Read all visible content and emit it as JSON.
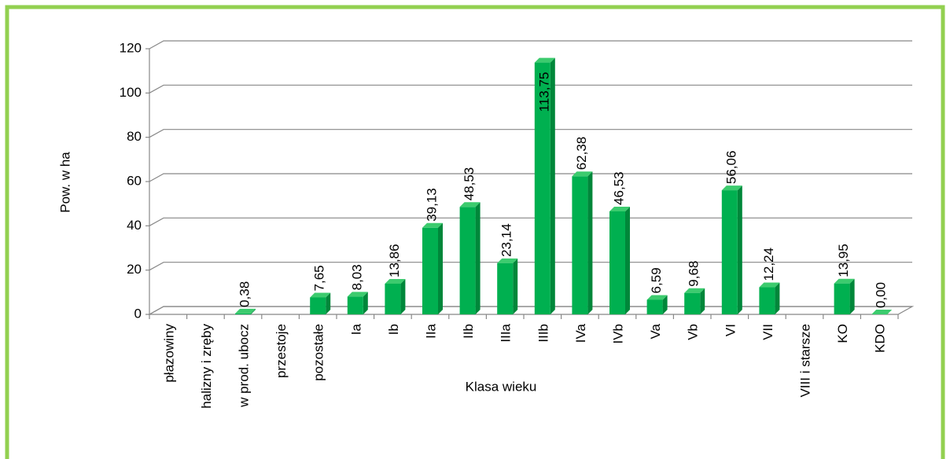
{
  "chart_data": {
    "type": "bar",
    "x_label": "Klasa wieku",
    "y_label": "Pow. w ha",
    "categories": [
      "płazowiny",
      "halizny i zręby",
      "w prod. ubocz",
      "przestoje",
      "pozostałe",
      "Ia",
      "Ib",
      "IIa",
      "IIb",
      "IIIa",
      "IIIb",
      "IVa",
      "IVb",
      "Va",
      "Vb",
      "VI",
      "VII",
      "VIII i starsze",
      "KO",
      "KDO"
    ],
    "values": [
      null,
      null,
      0.38,
      null,
      7.65,
      8.03,
      13.86,
      39.13,
      48.53,
      23.14,
      113.75,
      62.38,
      46.53,
      6.59,
      9.68,
      56.06,
      12.24,
      null,
      13.95,
      0.0
    ],
    "value_labels": [
      null,
      null,
      "0,38",
      null,
      "7,65",
      "8,03",
      "13,86",
      "39,13",
      "48,53",
      "23,14",
      "113,75",
      "62,38",
      "46,53",
      "6,59",
      "9,68",
      "56,06",
      "12,24",
      null,
      "13,95",
      "0,00"
    ],
    "color": "#00b050",
    "ylim": [
      0,
      120
    ],
    "yticks": [
      0,
      20,
      40,
      60,
      80,
      100,
      120
    ],
    "grid": true
  }
}
